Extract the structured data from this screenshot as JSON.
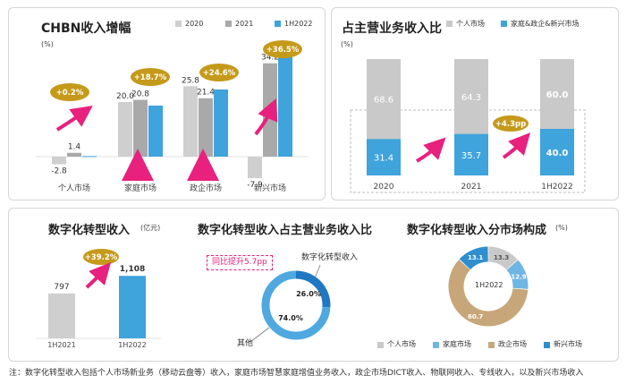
{
  "colors": {
    "c2020": "#cfcfcf",
    "c2021": "#a9a9a9",
    "c1h": "#3fa3dc",
    "gold": "#c59a1a",
    "pink": "#e8207e",
    "personal": "#c9c9c9",
    "family": "#6fb6e3",
    "gov": "#c7a77a",
    "emerging": "#2f8fce"
  },
  "p1": {
    "title": "CHBN收入增幅",
    "unit": "(%)",
    "legend": [
      "2020",
      "2021",
      "1H2022"
    ],
    "growth": [
      "+0.2%",
      "+18.7%",
      "+24.6%",
      "+36.5%"
    ],
    "chart_data": {
      "type": "bar",
      "categories": [
        "个人市场",
        "家庭市场",
        "政企市场",
        "新兴市场"
      ],
      "series": [
        {
          "name": "2020",
          "values": [
            -2.8,
            20.0,
            25.8,
            -7.9
          ]
        },
        {
          "name": "2021",
          "values": [
            1.4,
            20.8,
            21.4,
            34.2
          ]
        },
        {
          "name": "1H2022",
          "values": [
            0.2,
            18.7,
            24.6,
            36.5
          ]
        }
      ],
      "labels": [
        [
          "-2.8",
          "1.4",
          ""
        ],
        [
          "20.0",
          "20.8",
          ""
        ],
        [
          "25.8",
          "21.4",
          ""
        ],
        [
          "-7.9",
          "34.2",
          ""
        ]
      ]
    }
  },
  "p2": {
    "title": "占主营业务收入比",
    "unit": "(%)",
    "legend": [
      "个人市场",
      "家庭&政企&新兴市场"
    ],
    "growth": "+4.3pp",
    "chart_data": {
      "type": "bar",
      "categories": [
        "2020",
        "2021",
        "1H2022"
      ],
      "series": [
        {
          "name": "家庭&政企&新兴市场",
          "values": [
            31.4,
            35.7,
            40.0
          ]
        },
        {
          "name": "个人市场",
          "values": [
            68.6,
            64.3,
            60.0
          ]
        }
      ]
    }
  },
  "p3": {
    "title": "数字化转型收入",
    "unit": "(亿元)",
    "growth": "+39.2%",
    "chart_data": {
      "type": "bar",
      "categories": [
        "1H2021",
        "1H2022"
      ],
      "values": [
        797,
        1108
      ],
      "labels": [
        "797",
        "1,108"
      ]
    }
  },
  "p4": {
    "title": "数字化转型收入占主营业务收入比",
    "callout": "同比提升5.7pp",
    "label_digital": "数字化转型收入",
    "label_other": "其他",
    "chart_data": {
      "type": "pie",
      "labels": [
        "数字化转型收入",
        "其他"
      ],
      "values": [
        26.0,
        74.0
      ],
      "value_labels": [
        "26.0%",
        "74.0%"
      ]
    }
  },
  "p5": {
    "title": "数字化转型收入分市场构成",
    "unit": "(%)",
    "center": "1H2022",
    "legend": [
      "个人市场",
      "家庭市场",
      "政企市场",
      "新兴市场"
    ],
    "chart_data": {
      "type": "pie",
      "labels": [
        "个人市场",
        "家庭市场",
        "政企市场",
        "新兴市场"
      ],
      "values": [
        13.3,
        12.9,
        60.7,
        13.1
      ],
      "value_labels": [
        "13.3",
        "12.9",
        "60.7",
        "13.1"
      ]
    }
  },
  "footnote": "注：数字化转型收入包括个人市场新业务（移动云盘等）收入，家庭市场智慧家庭增值业务收入，政企市场DICT收入、物联网收入、专线收入，以及新兴市场收入"
}
